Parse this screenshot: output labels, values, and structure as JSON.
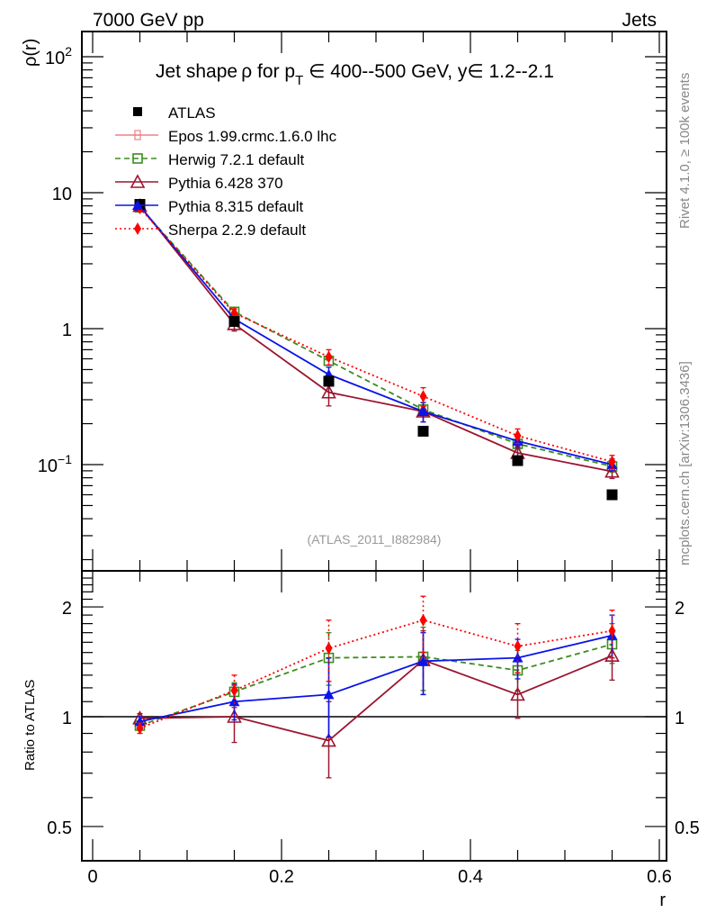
{
  "header": {
    "left_label": "7000 GeV pp",
    "right_label": "Jets"
  },
  "side_labels": {
    "rivet": "Rivet 4.1.0, ≥ 100k events",
    "mcplots": "mcplots.cern.ch [arXiv:1306.3436]"
  },
  "chart_data": [
    {
      "type": "line",
      "panel": "main",
      "title": "Jet shape ρ for p_T ∈ 400--500 GeV, y∈ 1.2--2.1",
      "title_parts": {
        "pre": "Jet shape ρ for p",
        "sub": "T",
        "post": " ∈ 400--500 GeV, y∈ 1.2--2.1"
      },
      "ylabel": "ρ(r)",
      "xlabel": "",
      "yscale": "log",
      "ylim": [
        0.02,
        150
      ],
      "xlim": [
        -0.012,
        0.607
      ],
      "ytick_labels": [
        {
          "value": 100,
          "base": "10",
          "exp": "2"
        },
        {
          "value": 10,
          "base": "10",
          "exp": ""
        },
        {
          "value": 1,
          "base": "1",
          "exp": ""
        },
        {
          "value": 0.1,
          "base": "10",
          "exp": "−1"
        }
      ],
      "watermark": "(ATLAS_2011_I882984)",
      "x": [
        0.05,
        0.15,
        0.25,
        0.35,
        0.45,
        0.55
      ],
      "series": [
        {
          "name": "ATLAS",
          "color": "#000000",
          "marker": "square-filled",
          "line": "none",
          "values": [
            8.2,
            1.13,
            0.41,
            0.176,
            0.107,
            0.06
          ]
        },
        {
          "name": "Epos 1.99.crmc.1.6.0 lhc",
          "color": "#f08080",
          "marker": "cross-open",
          "line": "solid",
          "values": [
            null,
            null,
            null,
            null,
            null,
            null
          ]
        },
        {
          "name": "Herwig 7.2.1 default",
          "color": "#3a8c1e",
          "marker": "square-open",
          "line": "dashed",
          "values": [
            7.8,
            1.33,
            0.58,
            0.254,
            0.142,
            0.097
          ],
          "err": [
            0.3,
            0.06,
            0.04,
            0.02,
            0.012,
            0.009
          ]
        },
        {
          "name": "Pythia 6.428 370",
          "color": "#9b1530",
          "marker": "triangle-open",
          "line": "solid",
          "values": [
            8.0,
            1.08,
            0.34,
            0.246,
            0.122,
            0.089
          ],
          "err": [
            0.4,
            0.12,
            0.07,
            0.04,
            0.015,
            0.01
          ]
        },
        {
          "name": "Pythia 8.315 default",
          "color": "#0a14e6",
          "marker": "triangle-filled",
          "line": "solid",
          "values": [
            7.95,
            1.18,
            0.46,
            0.246,
            0.149,
            0.1
          ],
          "err": [
            0.3,
            0.08,
            0.06,
            0.04,
            0.015,
            0.01
          ]
        },
        {
          "name": "Sherpa 2.2.9 default",
          "color": "#ff0000",
          "marker": "diamond-filled",
          "line": "dotted",
          "values": [
            7.7,
            1.3,
            0.62,
            0.318,
            0.163,
            0.105
          ],
          "err": [
            0.3,
            0.1,
            0.08,
            0.05,
            0.02,
            0.012
          ]
        }
      ],
      "legend_position": "top-left"
    },
    {
      "type": "line",
      "panel": "ratio",
      "ylabel": "Ratio to ATLAS",
      "xlabel": "r",
      "yscale": "log",
      "ylim": [
        0.4,
        2.5
      ],
      "xlim": [
        -0.012,
        0.607
      ],
      "yticks": [
        0.5,
        1,
        2
      ],
      "ytick_labels": [
        "0.5",
        "1",
        "2"
      ],
      "xticks": [
        0,
        0.2,
        0.4,
        0.6
      ],
      "xtick_labels": [
        "0",
        "0.2",
        "0.4",
        "0.6"
      ],
      "x": [
        0.05,
        0.15,
        0.25,
        0.35,
        0.45,
        0.55
      ],
      "reference_line": 1,
      "series": [
        {
          "name": "Herwig 7.2.1 default",
          "color": "#3a8c1e",
          "marker": "square-open",
          "line": "dashed",
          "values": [
            0.945,
            1.17,
            1.45,
            1.46,
            1.34,
            1.58
          ],
          "err_low": [
            0.92,
            1.1,
            1.22,
            1.18,
            1.18,
            1.4
          ],
          "err_high": [
            0.97,
            1.24,
            1.7,
            1.76,
            1.52,
            1.8
          ]
        },
        {
          "name": "Pythia 6.428 370",
          "color": "#9b1530",
          "marker": "triangle-open",
          "line": "solid",
          "values": [
            0.99,
            1.0,
            0.86,
            1.43,
            1.15,
            1.47
          ],
          "err_low": [
            0.96,
            0.85,
            0.68,
            1.15,
            0.99,
            1.26
          ],
          "err_high": [
            1.02,
            1.23,
            1.1,
            1.72,
            1.32,
            1.7
          ]
        },
        {
          "name": "Pythia 8.315 default",
          "color": "#0a14e6",
          "marker": "triangle-filled",
          "line": "solid",
          "values": [
            0.97,
            1.1,
            1.15,
            1.42,
            1.45,
            1.67
          ],
          "err_low": [
            0.94,
            0.98,
            0.88,
            1.15,
            1.27,
            1.45
          ],
          "err_high": [
            1.0,
            1.22,
            1.45,
            1.7,
            1.63,
            1.9
          ]
        },
        {
          "name": "Sherpa 2.2.9 default",
          "color": "#ff0000",
          "marker": "diamond-filled",
          "line": "dotted",
          "values": [
            0.93,
            1.18,
            1.54,
            1.84,
            1.56,
            1.72
          ],
          "err_low": [
            0.9,
            1.06,
            1.25,
            1.5,
            1.32,
            1.45
          ],
          "err_high": [
            0.96,
            1.3,
            1.84,
            2.14,
            1.8,
            1.96
          ]
        }
      ]
    }
  ]
}
